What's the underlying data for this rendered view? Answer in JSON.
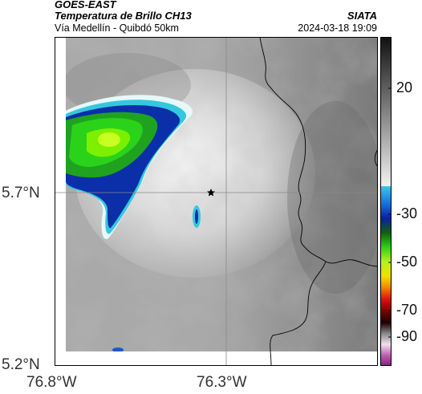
{
  "header": {
    "satellite": "GOES-EAST",
    "product": "Temperatura de Brillo CH13",
    "region": "Vía Medellín - Quibdó 50km",
    "organization": "SIATA",
    "timestamp": "2024-03-18 19:09"
  },
  "map": {
    "lon_ticks": [
      "76.8°W",
      "76.3°W"
    ],
    "lat_ticks": [
      "5.7°N",
      "5.2°N"
    ],
    "marker_icon": "star-icon",
    "grid_color": "#8a8a8a",
    "border_color": "#000000"
  },
  "colorbar": {
    "ticks": [
      "20",
      "-30",
      "-50",
      "-70",
      "-90"
    ]
  }
}
